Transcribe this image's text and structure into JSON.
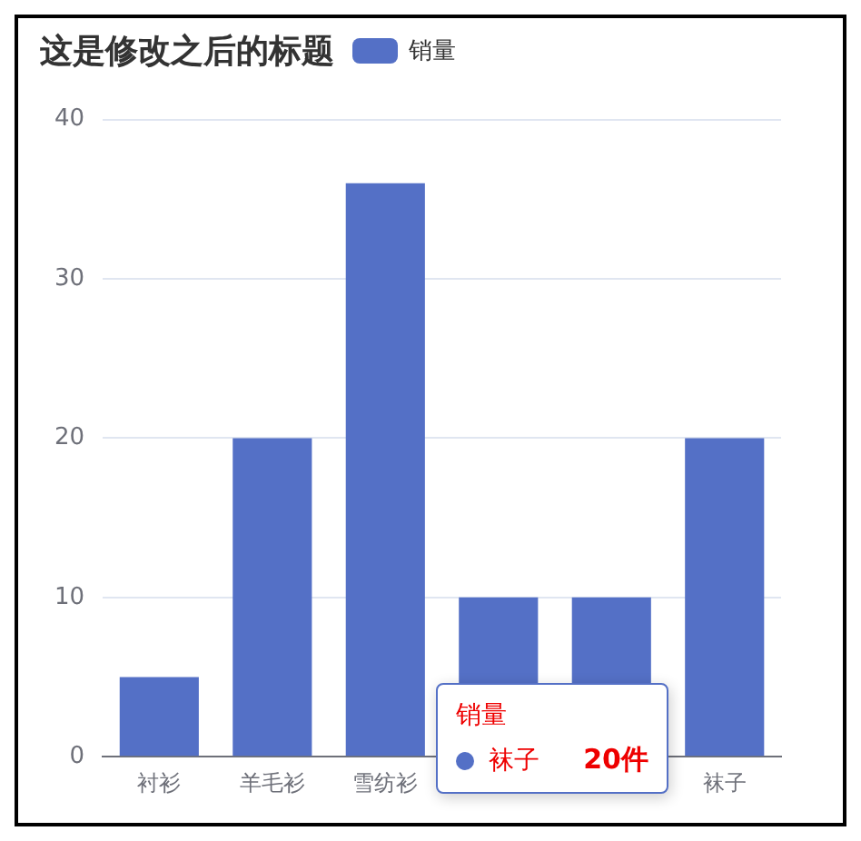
{
  "chart_data": {
    "type": "bar",
    "title": "这是修改之后的标题",
    "categories": [
      "衬衫",
      "羊毛衫",
      "雪纺衫",
      null,
      null,
      "袜子"
    ],
    "series": [
      {
        "name": "销量",
        "color": "#5470c6",
        "values": [
          5,
          20,
          36,
          10,
          10,
          20
        ]
      }
    ],
    "ylim": [
      0,
      40
    ],
    "yticks": [
      0,
      10,
      20,
      30,
      40
    ],
    "grid": "y",
    "legend": "top",
    "annotations": [
      "销量",
      "袜子",
      "20件"
    ]
  }
}
